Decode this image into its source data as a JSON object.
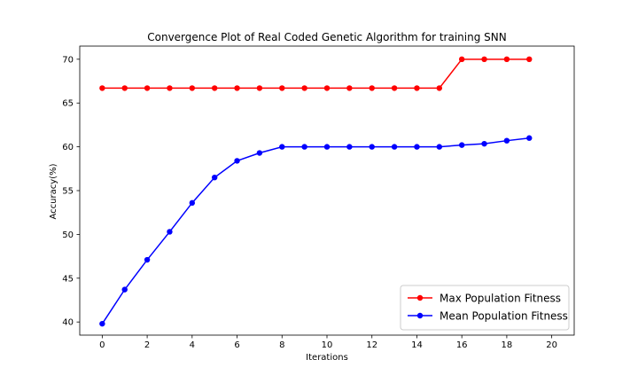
{
  "chart_data": {
    "type": "line",
    "title": "Convergence Plot of Real Coded Genetic Algorithm for training SNN",
    "xlabel": "Iterations",
    "ylabel": "Accuracy(%)",
    "xlim": [
      -1.0,
      21.0
    ],
    "ylim": [
      38.5,
      71.5
    ],
    "xticks": [
      0,
      2,
      4,
      6,
      8,
      10,
      12,
      14,
      16,
      18,
      20
    ],
    "yticks": [
      40,
      45,
      50,
      55,
      60,
      65,
      70
    ],
    "grid": false,
    "legend_position": "bottom-right",
    "x": [
      0,
      1,
      2,
      3,
      4,
      5,
      6,
      7,
      8,
      9,
      10,
      11,
      12,
      13,
      14,
      15,
      16,
      17,
      18,
      19
    ],
    "series": [
      {
        "name": "Max Population Fitness",
        "color": "#ff0000",
        "marker": "circle",
        "values": [
          66.7,
          66.7,
          66.7,
          66.7,
          66.7,
          66.7,
          66.7,
          66.7,
          66.7,
          66.7,
          66.7,
          66.7,
          66.7,
          66.7,
          66.7,
          66.7,
          70.0,
          70.0,
          70.0,
          70.0
        ]
      },
      {
        "name": "Mean Population Fitness",
        "color": "#0000ff",
        "marker": "circle",
        "values": [
          39.8,
          43.7,
          47.1,
          50.3,
          53.6,
          56.5,
          58.4,
          59.3,
          60.0,
          60.0,
          60.0,
          60.0,
          60.0,
          60.0,
          60.0,
          60.0,
          60.2,
          60.35,
          60.7,
          61.0
        ]
      }
    ]
  }
}
